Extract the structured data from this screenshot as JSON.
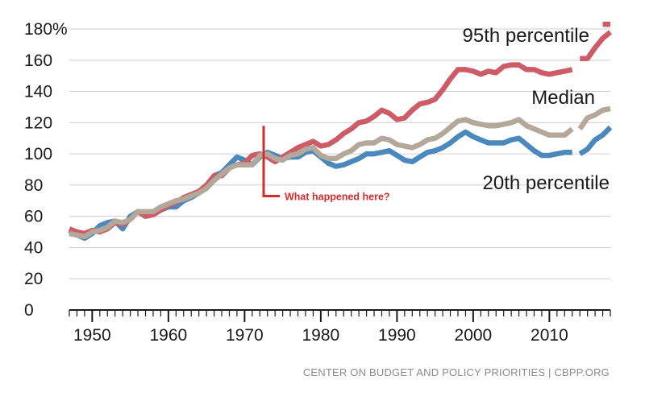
{
  "chart_data": {
    "type": "line",
    "title": "",
    "xlabel": "",
    "ylabel": "",
    "x_ticks": [
      "1950",
      "1960",
      "1970",
      "1980",
      "1990",
      "2000",
      "2010"
    ],
    "y_ticks": [
      "0",
      "20",
      "40",
      "60",
      "80",
      "100",
      "120",
      "140",
      "160",
      "180%"
    ],
    "xlim": [
      1947,
      2018
    ],
    "ylim": [
      0,
      180
    ],
    "grid": "horizontal",
    "series": [
      {
        "name": "95th percentile",
        "color": "#cd5c68",
        "x": [
          1947,
          1948,
          1949,
          1950,
          1951,
          1952,
          1953,
          1954,
          1955,
          1956,
          1957,
          1958,
          1959,
          1960,
          1961,
          1962,
          1963,
          1964,
          1965,
          1966,
          1967,
          1968,
          1969,
          1970,
          1971,
          1972,
          1973,
          1974,
          1975,
          1976,
          1977,
          1978,
          1979,
          1980,
          1981,
          1982,
          1983,
          1984,
          1985,
          1986,
          1987,
          1988,
          1989,
          1990,
          1991,
          1992,
          1993,
          1994,
          1995,
          1996,
          1997,
          1998,
          1999,
          2000,
          2001,
          2002,
          2003,
          2004,
          2005,
          2006,
          2007,
          2008,
          2009,
          2010,
          2011,
          2012,
          2013,
          2014,
          2015,
          2016,
          2017,
          2018
        ],
        "values": [
          52,
          50,
          49,
          51,
          50,
          52,
          56,
          55,
          58,
          63,
          60,
          61,
          64,
          67,
          69,
          72,
          74,
          76,
          80,
          86,
          86,
          91,
          93,
          94,
          99,
          100,
          98,
          95,
          98,
          101,
          104,
          106,
          108,
          105,
          106,
          109,
          113,
          116,
          120,
          121,
          124,
          128,
          126,
          122,
          123,
          128,
          132,
          133,
          135,
          141,
          148,
          154,
          154,
          153,
          151,
          153,
          152,
          156,
          157,
          157,
          154,
          154,
          152,
          151,
          152,
          153,
          154,
          161,
          161,
          168,
          174,
          178
        ],
        "label_text": "95th percentile",
        "extra_label": "",
        "break_after": [
          2013
        ],
        "tail_dash": {
          "x": [
            2017,
            2018
          ],
          "y": [
            183,
            183
          ]
        }
      },
      {
        "name": "Median",
        "color": "#b3a89a",
        "x": [
          1947,
          1948,
          1949,
          1950,
          1951,
          1952,
          1953,
          1954,
          1955,
          1956,
          1957,
          1958,
          1959,
          1960,
          1961,
          1962,
          1963,
          1964,
          1965,
          1966,
          1967,
          1968,
          1969,
          1970,
          1971,
          1972,
          1973,
          1974,
          1975,
          1976,
          1977,
          1978,
          1979,
          1980,
          1981,
          1982,
          1983,
          1984,
          1985,
          1986,
          1987,
          1988,
          1989,
          1990,
          1991,
          1992,
          1993,
          1994,
          1995,
          1996,
          1997,
          1998,
          1999,
          2000,
          2001,
          2002,
          2003,
          2004,
          2005,
          2006,
          2007,
          2008,
          2009,
          2010,
          2011,
          2012,
          2013,
          2014,
          2015,
          2016,
          2017,
          2018
        ],
        "values": [
          49,
          48,
          47,
          50,
          51,
          53,
          57,
          56,
          58,
          63,
          63,
          63,
          66,
          68,
          70,
          71,
          73,
          75,
          78,
          83,
          87,
          91,
          93,
          93,
          93,
          99,
          100,
          97,
          96,
          99,
          100,
          103,
          104,
          99,
          97,
          97,
          100,
          102,
          106,
          107,
          107,
          110,
          109,
          106,
          105,
          104,
          106,
          109,
          110,
          113,
          117,
          121,
          122,
          120,
          119,
          118,
          118,
          119,
          120,
          122,
          118,
          116,
          114,
          112,
          112,
          112,
          116,
          116,
          123,
          125,
          128,
          129
        ],
        "label_text": "Median",
        "break_after": [
          2013
        ]
      },
      {
        "name": "20th percentile",
        "color": "#4a88bd",
        "x": [
          1947,
          1948,
          1949,
          1950,
          1951,
          1952,
          1953,
          1954,
          1955,
          1956,
          1957,
          1958,
          1959,
          1960,
          1961,
          1962,
          1963,
          1964,
          1965,
          1966,
          1967,
          1968,
          1969,
          1970,
          1971,
          1972,
          1973,
          1974,
          1975,
          1976,
          1977,
          1978,
          1979,
          1980,
          1981,
          1982,
          1983,
          1984,
          1985,
          1986,
          1987,
          1988,
          1989,
          1990,
          1991,
          1992,
          1993,
          1994,
          1995,
          1996,
          1997,
          1998,
          1999,
          2000,
          2001,
          2002,
          2003,
          2004,
          2005,
          2006,
          2007,
          2008,
          2009,
          2010,
          2011,
          2012,
          2013,
          2014,
          2015,
          2016,
          2017,
          2018
        ],
        "values": [
          51,
          48,
          46,
          49,
          54,
          56,
          57,
          52,
          60,
          63,
          62,
          63,
          64,
          66,
          66,
          70,
          72,
          75,
          78,
          86,
          88,
          93,
          98,
          96,
          93,
          98,
          101,
          99,
          97,
          98,
          98,
          101,
          102,
          98,
          94,
          92,
          93,
          95,
          97,
          100,
          100,
          101,
          102,
          99,
          96,
          95,
          98,
          101,
          102,
          104,
          107,
          111,
          114,
          111,
          109,
          107,
          107,
          107,
          109,
          110,
          106,
          102,
          99,
          99,
          100,
          101,
          101,
          100,
          103,
          109,
          112,
          117
        ],
        "label_text": "20th percentile",
        "break_after": [
          2013
        ]
      }
    ],
    "annotation": {
      "text": "What happened here?",
      "x": 1972.5,
      "y_top": 118,
      "y_bottom": 73
    }
  },
  "source": "CENTER ON BUDGET AND POLICY PRIORITIES | CBPP.ORG"
}
